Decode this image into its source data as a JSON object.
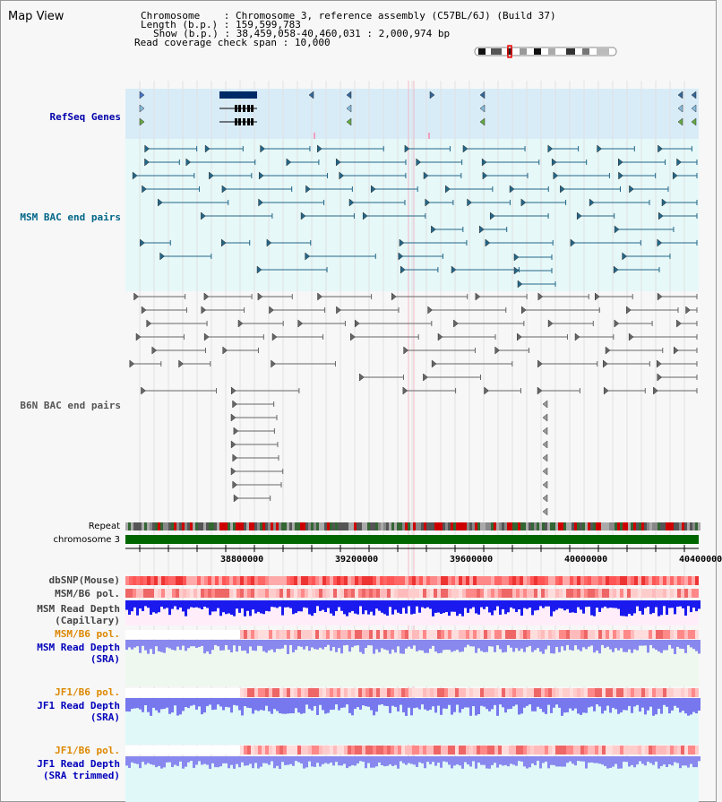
{
  "title": "Map View",
  "header": {
    "chromosome_label": "Chromosome    ",
    "chromosome_value": "Chromosome 3, reference assembly (C57BL/6J) (Build 37)",
    "length_label": "Length (b.p.)",
    "length_value": "159,599,783",
    "show_label": "Show (b.p.)",
    "show_value": "38,459,058-40,460,031 : 2,000,974 bp",
    "coverage_label": "Read coverage check span",
    "coverage_value": "10,000"
  },
  "tracks": {
    "refseq": "RefSeq Genes",
    "msm_bac": "MSM BAC end pairs",
    "b6n_bac": "B6N BAC end pairs",
    "repeat": "Repeat",
    "chromosome": "chromosome 3",
    "dbsnp": "dbSNP(Mouse)",
    "msm_b6_pol": "MSM/B6 pol.",
    "msm_depth_cap_1": "MSM Read Depth",
    "msm_depth_cap_2": "(Capillary)",
    "msm_b6_pol_sra": "MSM/B6 pol.",
    "msm_depth_sra_1": "MSM Read Depth",
    "msm_depth_sra_2": "(SRA)",
    "jf1_b6_pol": "JF1/B6 pol.",
    "jf1_depth_sra_1": "JF1 Read Depth",
    "jf1_depth_sra_2": "(SRA)",
    "jf1_b6_pol_trim": "JF1/B6 pol.",
    "jf1_depth_trim_1": "JF1 Read Depth",
    "jf1_depth_trim_2": "(SRA trimmed)"
  },
  "axis_ticks": [
    "38800000",
    "39200000",
    "39600000",
    "40000000",
    "40400000"
  ],
  "colors": {
    "refseq_label": "#0000aa",
    "msm_label": "#006688",
    "b6n_label": "#555555",
    "pol_orange": "#dd8800",
    "depth_blue": "#0000bb",
    "refseq_bg": "#d8ecf8",
    "msm_bg": "#e6f8f8",
    "chromosome_green": "#006600"
  }
}
